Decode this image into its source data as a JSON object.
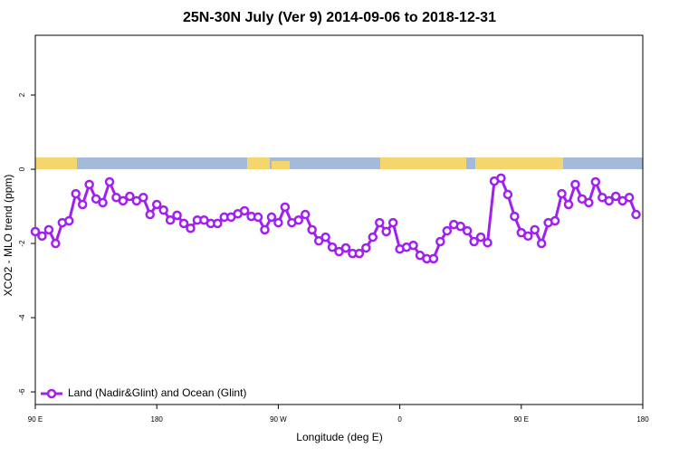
{
  "chart_data": {
    "type": "line",
    "title": "25N-30N July (Ver 9)   2014-09-06 to 2018-12-31",
    "xlabel": "Longitude (deg E)",
    "ylabel": "XCO2 - MLO trend (ppm)",
    "xlim": [
      90,
      540
    ],
    "ylim": [
      -6.34,
      3.61
    ],
    "xticks": [
      {
        "value": 90,
        "label": "90 E"
      },
      {
        "value": 180,
        "label": "180"
      },
      {
        "value": 270,
        "label": "90 W"
      },
      {
        "value": 360,
        "label": "0"
      },
      {
        "value": 450,
        "label": "90 E"
      },
      {
        "value": 540,
        "label": "180"
      }
    ],
    "yticks": [
      2,
      0,
      -2,
      -4,
      -6
    ],
    "legend": "bottomleft",
    "x": [
      90,
      95,
      100,
      105,
      110,
      115,
      120,
      125,
      130,
      135,
      140,
      145,
      150,
      155,
      160,
      165,
      170,
      175,
      180,
      185,
      190,
      195,
      200,
      205,
      210,
      215,
      220,
      225,
      230,
      235,
      240,
      245,
      250,
      255,
      260,
      265,
      270,
      275,
      280,
      285,
      290,
      295,
      300,
      305,
      310,
      315,
      320,
      325,
      330,
      335,
      340,
      345,
      350,
      355,
      360,
      365,
      370,
      375,
      380,
      385,
      390,
      395,
      400,
      405,
      410,
      415,
      420,
      425,
      430,
      435,
      440,
      445,
      450,
      455,
      460,
      465,
      470,
      475,
      480,
      485,
      490,
      495,
      500,
      505,
      510,
      515,
      520,
      525,
      530,
      535
    ],
    "series": [
      {
        "name": "Land (Nadir&Glint) and Ocean (Glint)",
        "color": "#a020f0",
        "values": [
          -1.68,
          -1.8,
          -1.63,
          -2.0,
          -1.44,
          -1.39,
          -0.66,
          -0.95,
          -0.41,
          -0.8,
          -0.9,
          -0.34,
          -0.76,
          -0.85,
          -0.73,
          -0.85,
          -0.76,
          -1.22,
          -0.95,
          -1.1,
          -1.37,
          -1.24,
          -1.46,
          -1.59,
          -1.37,
          -1.37,
          -1.46,
          -1.46,
          -1.29,
          -1.29,
          -1.2,
          -1.12,
          -1.27,
          -1.29,
          -1.63,
          -1.29,
          -1.44,
          -1.02,
          -1.44,
          -1.37,
          -1.22,
          -1.63,
          -1.93,
          -1.83,
          -2.1,
          -2.22,
          -2.12,
          -2.27,
          -2.27,
          -2.12,
          -1.83,
          -1.44,
          -1.68,
          -1.44,
          -2.15,
          -2.1,
          -2.05,
          -2.32,
          -2.41,
          -2.41,
          -1.95,
          -1.66,
          -1.49,
          -1.54,
          -1.66,
          -1.95,
          -1.83,
          -1.98,
          -0.32,
          -0.24,
          -0.68,
          -1.27,
          -1.71,
          -1.8,
          -1.63,
          -2.0,
          -1.44,
          -1.39,
          -0.66,
          -0.95,
          -0.41,
          -0.8,
          -0.9,
          -0.34,
          -0.76,
          -0.85,
          -0.73,
          -0.85,
          -0.76,
          -1.22
        ]
      }
    ]
  }
}
